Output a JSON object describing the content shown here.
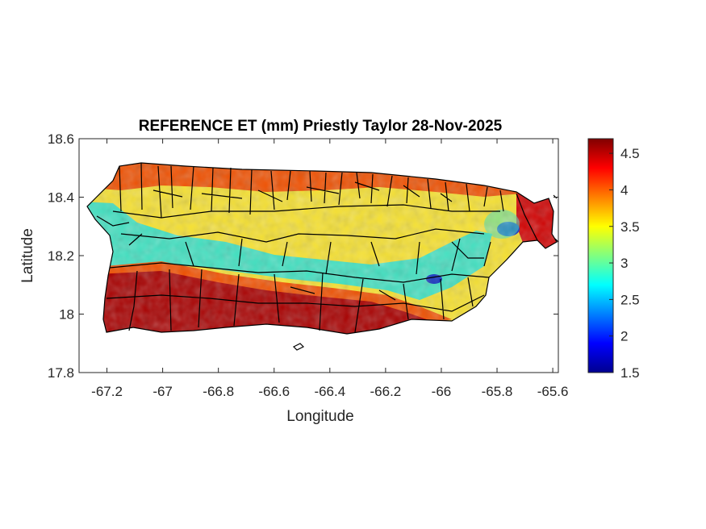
{
  "figure": {
    "title": "REFERENCE ET (mm) Priestly Taylor 28-Nov-2025"
  },
  "map": {
    "xlabel": "Longitude",
    "ylabel": "Latitude",
    "xlim": [
      -67.3,
      -65.58
    ],
    "ylim": [
      17.8,
      18.6
    ],
    "xticks": [
      {
        "value": -67.2,
        "label": "-67.2"
      },
      {
        "value": -67.0,
        "label": "-67"
      },
      {
        "value": -66.8,
        "label": "-66.8"
      },
      {
        "value": -66.6,
        "label": "-66.6"
      },
      {
        "value": -66.4,
        "label": "-66.4"
      },
      {
        "value": -66.2,
        "label": "-66.2"
      },
      {
        "value": -66.0,
        "label": "-66"
      },
      {
        "value": -65.8,
        "label": "-65.8"
      },
      {
        "value": -65.6,
        "label": "-65.6"
      }
    ],
    "yticks": [
      {
        "value": 17.8,
        "label": "17.8"
      },
      {
        "value": 18.0,
        "label": "18"
      },
      {
        "value": 18.2,
        "label": "18.2"
      },
      {
        "value": 18.4,
        "label": "18.4"
      },
      {
        "value": 18.6,
        "label": "18.6"
      }
    ],
    "colormap": "jet",
    "region_colors": {
      "south_coast": "#a80000",
      "north_coast": "#f05000",
      "interior": "#f5e030",
      "central_band": "#40e0c0",
      "low_spot": "#1030c0",
      "northeast_tip": "#d00000",
      "boundaries": "#000000"
    }
  },
  "colorbar": {
    "range": [
      1.5,
      4.7
    ],
    "ticks": [
      {
        "value": 1.5,
        "label": "1.5"
      },
      {
        "value": 2.0,
        "label": "2"
      },
      {
        "value": 2.5,
        "label": "2.5"
      },
      {
        "value": 3.0,
        "label": "3"
      },
      {
        "value": 3.5,
        "label": "3.5"
      },
      {
        "value": 4.0,
        "label": "4"
      },
      {
        "value": 4.5,
        "label": "4.5"
      }
    ],
    "colors": [
      "#00008f",
      "#0000ff",
      "#0080ff",
      "#00ffff",
      "#80ff80",
      "#ffff00",
      "#ff8000",
      "#ff0000",
      "#800000"
    ]
  }
}
